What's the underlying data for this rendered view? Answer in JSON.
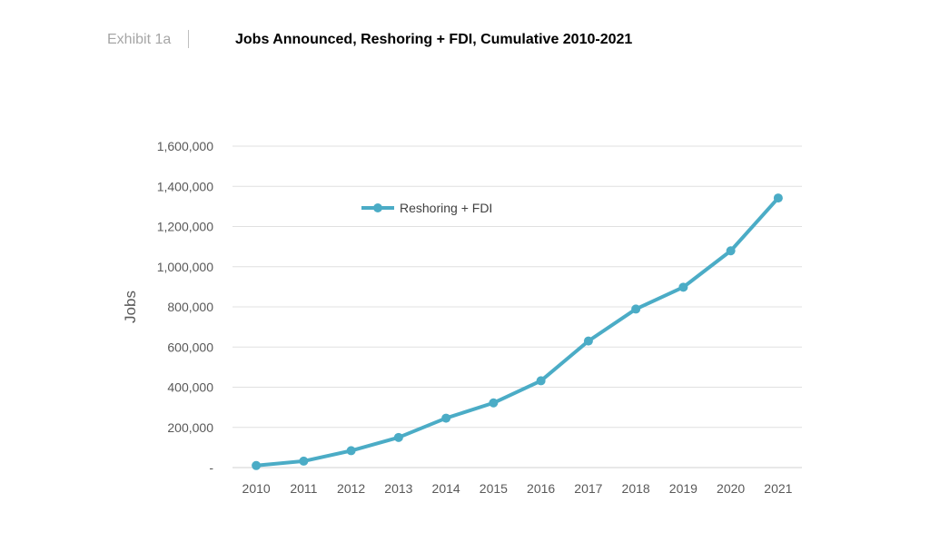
{
  "header": {
    "exhibit": "Exhibit 1a",
    "title": "Jobs Announced, Reshoring + FDI, Cumulative 2010-2021"
  },
  "chart_data": {
    "type": "line",
    "title": "Jobs Announced, Reshoring + FDI, Cumulative 2010-2021",
    "xlabel": "",
    "ylabel": "Jobs",
    "ylim": [
      0,
      1600000
    ],
    "y_ticks": [
      0,
      200000,
      400000,
      600000,
      800000,
      1000000,
      1200000,
      1400000,
      1600000
    ],
    "y_tick_labels": [
      "-",
      "200,000",
      "400,000",
      "600,000",
      "800,000",
      "1,000,000",
      "1,200,000",
      "1,400,000",
      "1,600,000"
    ],
    "categories": [
      "2010",
      "2011",
      "2012",
      "2013",
      "2014",
      "2015",
      "2016",
      "2017",
      "2018",
      "2019",
      "2020",
      "2021"
    ],
    "grid": true,
    "legend_position": "top-left",
    "color": "#4bacc6",
    "series": [
      {
        "name": "Reshoring + FDI",
        "values": [
          10000,
          32000,
          84000,
          150000,
          246000,
          322000,
          432000,
          630000,
          789000,
          898000,
          1079000,
          1342000
        ]
      }
    ]
  }
}
